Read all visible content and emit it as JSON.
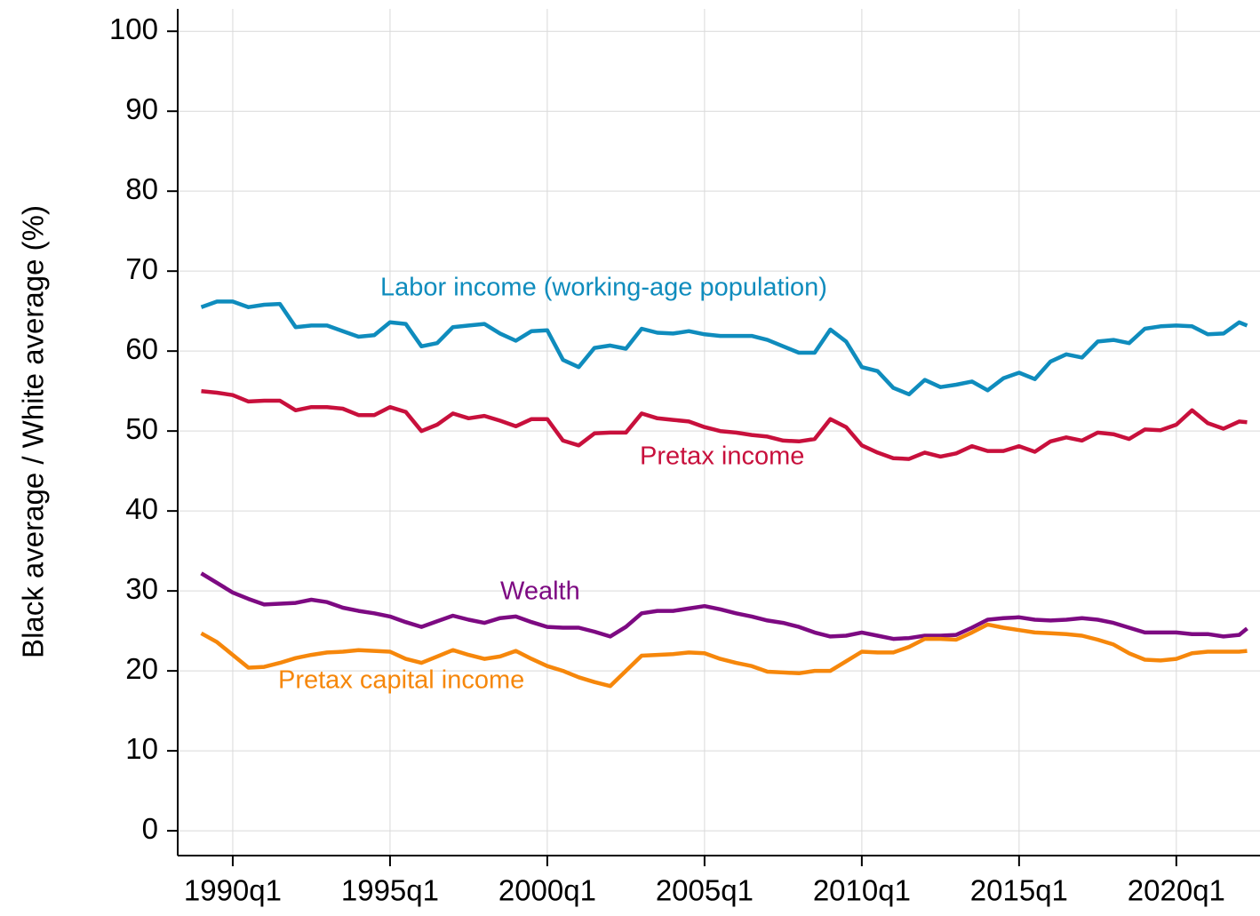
{
  "chart_data": {
    "type": "line",
    "ylabel": "Black average / White average (%)",
    "x": [
      1989,
      1989.5,
      1990,
      1990.5,
      1991,
      1991.5,
      1992,
      1992.5,
      1993,
      1993.5,
      1994,
      1994.5,
      1995,
      1995.5,
      1996,
      1996.5,
      1997,
      1997.5,
      1998,
      1998.5,
      1999,
      1999.5,
      2000,
      2000.5,
      2001,
      2001.5,
      2002,
      2002.5,
      2003,
      2003.5,
      2004,
      2004.5,
      2005,
      2005.5,
      2006,
      2006.5,
      2007,
      2007.5,
      2008,
      2008.5,
      2009,
      2009.5,
      2010,
      2010.5,
      2011,
      2011.5,
      2012,
      2012.5,
      2013,
      2013.5,
      2014,
      2014.5,
      2015,
      2015.5,
      2016,
      2016.5,
      2017,
      2017.5,
      2018,
      2018.5,
      2019,
      2019.5,
      2020,
      2020.5,
      2021,
      2021.5,
      2022,
      2022.25
    ],
    "series": [
      {
        "name": "Labor income (working-age population)",
        "color": "#0f8cbd",
        "values": [
          65.5,
          66.2,
          66.2,
          65.5,
          65.8,
          65.9,
          63,
          63.2,
          63.2,
          62.5,
          61.8,
          62,
          63.6,
          63.4,
          60.6,
          61,
          63,
          63.2,
          63.4,
          62.2,
          61.3,
          62.5,
          62.6,
          58.9,
          58,
          60.4,
          60.7,
          60.3,
          62.8,
          62.3,
          62.2,
          62.5,
          62.1,
          61.9,
          61.9,
          61.9,
          61.4,
          60.6,
          59.8,
          59.8,
          62.7,
          61.2,
          58,
          57.5,
          55.4,
          54.6,
          56.4,
          55.5,
          55.8,
          56.2,
          55.1,
          56.6,
          57.3,
          56.5,
          58.7,
          59.6,
          59.2,
          61.2,
          61.4,
          61,
          62.8,
          63.1,
          63.2,
          63.1,
          62.1,
          62.2,
          63.6,
          63.2
        ]
      },
      {
        "name": "Pretax income",
        "color": "#c8103c",
        "values": [
          55,
          54.8,
          54.5,
          53.7,
          53.8,
          53.8,
          52.6,
          53,
          53,
          52.8,
          52,
          52,
          53,
          52.4,
          50,
          50.8,
          52.2,
          51.6,
          51.9,
          51.3,
          50.6,
          51.5,
          51.5,
          48.8,
          48.2,
          49.7,
          49.8,
          49.8,
          52.2,
          51.6,
          51.4,
          51.2,
          50.5,
          50,
          49.8,
          49.5,
          49.3,
          48.8,
          48.7,
          49,
          51.5,
          50.5,
          48.2,
          47.3,
          46.6,
          46.5,
          47.3,
          46.8,
          47.2,
          48.1,
          47.5,
          47.5,
          48.1,
          47.4,
          48.7,
          49.2,
          48.8,
          49.8,
          49.6,
          49,
          50.2,
          50.1,
          50.8,
          52.6,
          51,
          50.3,
          51.2,
          51.1
        ]
      },
      {
        "name": "Wealth",
        "color": "#7d0a82",
        "values": [
          32.2,
          31,
          29.8,
          29,
          28.3,
          28.4,
          28.5,
          28.9,
          28.6,
          27.9,
          27.5,
          27.2,
          26.8,
          26.1,
          25.5,
          26.2,
          26.9,
          26.4,
          26,
          26.6,
          26.8,
          26.1,
          25.5,
          25.4,
          25.4,
          24.9,
          24.3,
          25.5,
          27.2,
          27.5,
          27.5,
          27.8,
          28.1,
          27.7,
          27.2,
          26.8,
          26.3,
          26,
          25.5,
          24.8,
          24.3,
          24.4,
          24.8,
          24.4,
          24,
          24.1,
          24.4,
          24.4,
          24.5,
          25.4,
          26.4,
          26.6,
          26.7,
          26.4,
          26.3,
          26.4,
          26.6,
          26.4,
          26,
          25.4,
          24.8,
          24.8,
          24.8,
          24.6,
          24.6,
          24.3,
          24.5,
          25.3
        ]
      },
      {
        "name": "Pretax capital income",
        "color": "#f6870b",
        "values": [
          24.7,
          23.6,
          22,
          20.4,
          20.5,
          21,
          21.6,
          22,
          22.3,
          22.4,
          22.6,
          22.5,
          22.4,
          21.5,
          21,
          21.8,
          22.6,
          22,
          21.5,
          21.8,
          22.5,
          21.5,
          20.6,
          20,
          19.2,
          18.6,
          18.1,
          20,
          21.9,
          22,
          22.1,
          22.3,
          22.2,
          21.5,
          21,
          20.6,
          19.9,
          19.8,
          19.7,
          20,
          20,
          21.2,
          22.4,
          22.3,
          22.3,
          23,
          24,
          24,
          23.9,
          24.8,
          25.8,
          25.4,
          25.1,
          24.8,
          24.7,
          24.6,
          24.4,
          23.9,
          23.3,
          22.2,
          21.4,
          21.3,
          21.5,
          22.2,
          22.4,
          22.4,
          22.4,
          22.5
        ]
      }
    ],
    "xlim": [
      1988.25,
      2022.66
    ],
    "xticks": [
      {
        "value": 1990,
        "label": "1990q1"
      },
      {
        "value": 1995,
        "label": "1995q1"
      },
      {
        "value": 2000,
        "label": "2000q1"
      },
      {
        "value": 2005,
        "label": "2005q1"
      },
      {
        "value": 2010,
        "label": "2010q1"
      },
      {
        "value": 2015,
        "label": "2015q1"
      },
      {
        "value": 2020,
        "label": "2020q1"
      }
    ],
    "ylim": [
      -3.1,
      102.8
    ],
    "yticks": [
      0,
      10,
      20,
      30,
      40,
      50,
      60,
      70,
      80,
      90,
      100
    ],
    "grid": true
  }
}
